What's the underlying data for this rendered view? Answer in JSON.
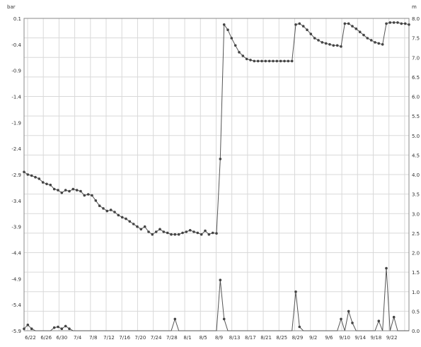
{
  "chart_data": {
    "type": "line",
    "left_unit": "bar",
    "right_unit": "m",
    "left_ticks": [
      "0.1",
      "-0.4",
      "-0.9",
      "-1.4",
      "-1.9",
      "-2.4",
      "-2.9",
      "-3.4",
      "-3.9",
      "-4.4",
      "-4.9",
      "-5.4",
      "-5.9"
    ],
    "right_ticks": [
      "8.0",
      "7.5",
      "7.0",
      "6.5",
      "6.0",
      "5.5",
      "5.0",
      "4.5",
      "4.0",
      "3.5",
      "3.0",
      "2.5",
      "2.0",
      "1.5",
      "1.0",
      "0.5",
      "0.0"
    ],
    "x_ticks": [
      "6/22",
      "6/26",
      "6/30",
      "7/4",
      "7/8",
      "7/12",
      "7/16",
      "7/20",
      "7/24",
      "7/28",
      "8/1",
      "8/5",
      "8/9",
      "8/13",
      "8/17",
      "8/21",
      "8/25",
      "8/29",
      "9/2",
      "9/6",
      "9/10",
      "9/14",
      "9/18",
      "9/22"
    ],
    "left_ylim": [
      -5.9,
      0.1
    ],
    "right_ylim": [
      0,
      8
    ],
    "grid": true,
    "colors": {
      "line": "#555555",
      "marker": "#444444",
      "grid": "#d9d9d9",
      "axis": "#888888"
    },
    "series": [
      {
        "axis": "left",
        "points": [
          [
            0,
            -2.85
          ],
          [
            1,
            -2.9
          ],
          [
            2,
            -2.92
          ],
          [
            3,
            -2.95
          ],
          [
            4,
            -2.98
          ],
          [
            5,
            -3.05
          ],
          [
            6,
            -3.08
          ],
          [
            7,
            -3.1
          ],
          [
            8,
            -3.18
          ],
          [
            9,
            -3.2
          ],
          [
            10,
            -3.25
          ],
          [
            11,
            -3.2
          ],
          [
            12,
            -3.22
          ],
          [
            13,
            -3.18
          ],
          [
            14,
            -3.2
          ],
          [
            15,
            -3.22
          ],
          [
            16,
            -3.3
          ],
          [
            17,
            -3.28
          ],
          [
            18,
            -3.3
          ],
          [
            19,
            -3.4
          ],
          [
            20,
            -3.5
          ],
          [
            21,
            -3.55
          ],
          [
            22,
            -3.6
          ],
          [
            23,
            -3.58
          ],
          [
            24,
            -3.62
          ],
          [
            25,
            -3.68
          ],
          [
            26,
            -3.72
          ],
          [
            27,
            -3.75
          ],
          [
            28,
            -3.8
          ],
          [
            29,
            -3.85
          ],
          [
            30,
            -3.9
          ],
          [
            31,
            -3.95
          ],
          [
            32,
            -3.9
          ],
          [
            33,
            -4.0
          ],
          [
            34,
            -4.05
          ],
          [
            35,
            -4.0
          ],
          [
            36,
            -3.95
          ],
          [
            37,
            -4.0
          ],
          [
            38,
            -4.02
          ],
          [
            39,
            -4.05
          ],
          [
            40,
            -4.05
          ],
          [
            41,
            -4.05
          ],
          [
            42,
            -4.02
          ],
          [
            43,
            -4.0
          ],
          [
            44,
            -3.97
          ],
          [
            45,
            -4.0
          ],
          [
            46,
            -4.02
          ],
          [
            47,
            -4.05
          ],
          [
            48,
            -3.98
          ],
          [
            49,
            -4.05
          ],
          [
            50,
            -4.02
          ],
          [
            51,
            -4.03
          ],
          [
            52,
            -2.6
          ],
          [
            53,
            -0.02
          ],
          [
            54,
            -0.12
          ],
          [
            55,
            -0.28
          ],
          [
            56,
            -0.42
          ],
          [
            57,
            -0.55
          ],
          [
            58,
            -0.62
          ],
          [
            59,
            -0.68
          ],
          [
            60,
            -0.7
          ],
          [
            61,
            -0.72
          ],
          [
            62,
            -0.72
          ],
          [
            63,
            -0.72
          ],
          [
            64,
            -0.72
          ],
          [
            65,
            -0.72
          ],
          [
            66,
            -0.72
          ],
          [
            67,
            -0.72
          ],
          [
            68,
            -0.72
          ],
          [
            69,
            -0.72
          ],
          [
            70,
            -0.72
          ],
          [
            71,
            -0.72
          ],
          [
            72,
            -0.02
          ],
          [
            73,
            -0.0
          ],
          [
            74,
            -0.05
          ],
          [
            75,
            -0.12
          ],
          [
            76,
            -0.2
          ],
          [
            77,
            -0.28
          ],
          [
            78,
            -0.32
          ],
          [
            79,
            -0.36
          ],
          [
            80,
            -0.38
          ],
          [
            81,
            -0.4
          ],
          [
            82,
            -0.42
          ],
          [
            83,
            -0.42
          ],
          [
            84,
            -0.44
          ],
          [
            85,
            0.0
          ],
          [
            86,
            0.0
          ],
          [
            87,
            -0.05
          ],
          [
            88,
            -0.1
          ],
          [
            89,
            -0.16
          ],
          [
            90,
            -0.22
          ],
          [
            91,
            -0.28
          ],
          [
            92,
            -0.32
          ],
          [
            93,
            -0.36
          ],
          [
            94,
            -0.38
          ],
          [
            95,
            -0.4
          ],
          [
            96,
            0.0
          ],
          [
            97,
            0.02
          ],
          [
            98,
            0.02
          ],
          [
            99,
            0.02
          ],
          [
            100,
            0.0
          ],
          [
            101,
            -0.0
          ],
          [
            102,
            -0.02
          ]
        ]
      },
      {
        "axis": "right",
        "points": [
          [
            0,
            0.05
          ],
          [
            1,
            0.15
          ],
          [
            2,
            0.05
          ],
          [
            3,
            0.0
          ],
          [
            4,
            0.0
          ],
          [
            5,
            0.0
          ],
          [
            6,
            0.0
          ],
          [
            7,
            0.0
          ],
          [
            8,
            0.08
          ],
          [
            9,
            0.1
          ],
          [
            10,
            0.05
          ],
          [
            11,
            0.12
          ],
          [
            12,
            0.05
          ],
          [
            13,
            0.0
          ],
          [
            14,
            0.0
          ],
          [
            15,
            0.0
          ],
          [
            16,
            0.0
          ],
          [
            17,
            0.0
          ],
          [
            18,
            0.0
          ],
          [
            19,
            0.0
          ],
          [
            20,
            0.0
          ],
          [
            21,
            0.0
          ],
          [
            22,
            0.0
          ],
          [
            23,
            0.0
          ],
          [
            24,
            0.0
          ],
          [
            25,
            0.0
          ],
          [
            26,
            0.0
          ],
          [
            27,
            0.0
          ],
          [
            28,
            0.0
          ],
          [
            29,
            0.0
          ],
          [
            30,
            0.0
          ],
          [
            31,
            0.0
          ],
          [
            32,
            0.0
          ],
          [
            33,
            0.0
          ],
          [
            34,
            0.0
          ],
          [
            35,
            0.0
          ],
          [
            36,
            0.0
          ],
          [
            37,
            0.0
          ],
          [
            38,
            0.0
          ],
          [
            39,
            0.0
          ],
          [
            40,
            0.3
          ],
          [
            41,
            0.0
          ],
          [
            42,
            0.0
          ],
          [
            43,
            0.0
          ],
          [
            44,
            0.0
          ],
          [
            45,
            0.0
          ],
          [
            46,
            0.0
          ],
          [
            47,
            0.0
          ],
          [
            48,
            0.0
          ],
          [
            49,
            0.0
          ],
          [
            50,
            0.0
          ],
          [
            51,
            0.0
          ],
          [
            52,
            1.3
          ],
          [
            53,
            0.3
          ],
          [
            54,
            0.0
          ],
          [
            55,
            0.0
          ],
          [
            56,
            0.0
          ],
          [
            57,
            0.0
          ],
          [
            58,
            0.0
          ],
          [
            59,
            0.0
          ],
          [
            60,
            0.0
          ],
          [
            61,
            0.0
          ],
          [
            62,
            0.0
          ],
          [
            63,
            0.0
          ],
          [
            64,
            0.0
          ],
          [
            65,
            0.0
          ],
          [
            66,
            0.0
          ],
          [
            67,
            0.0
          ],
          [
            68,
            0.0
          ],
          [
            69,
            0.0
          ],
          [
            70,
            0.0
          ],
          [
            71,
            0.0
          ],
          [
            72,
            1.0
          ],
          [
            73,
            0.1
          ],
          [
            74,
            0.0
          ],
          [
            75,
            0.0
          ],
          [
            76,
            0.0
          ],
          [
            77,
            0.0
          ],
          [
            78,
            0.0
          ],
          [
            79,
            0.0
          ],
          [
            80,
            0.0
          ],
          [
            81,
            0.0
          ],
          [
            82,
            0.0
          ],
          [
            83,
            0.0
          ],
          [
            84,
            0.3
          ],
          [
            85,
            0.0
          ],
          [
            86,
            0.5
          ],
          [
            87,
            0.2
          ],
          [
            88,
            0.0
          ],
          [
            89,
            0.0
          ],
          [
            90,
            0.0
          ],
          [
            91,
            0.0
          ],
          [
            92,
            0.0
          ],
          [
            93,
            0.0
          ],
          [
            94,
            0.25
          ],
          [
            95,
            0.0
          ],
          [
            96,
            1.6
          ],
          [
            97,
            0.0
          ],
          [
            98,
            0.35
          ],
          [
            99,
            0.0
          ],
          [
            100,
            0.0
          ],
          [
            101,
            0.0
          ],
          [
            102,
            0.0
          ]
        ]
      }
    ]
  }
}
